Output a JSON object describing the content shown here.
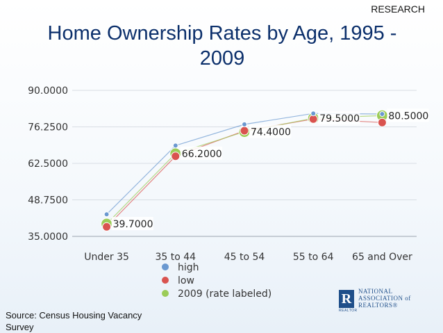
{
  "header": {
    "corner_label": "RESEARCH"
  },
  "title": "Home Ownership Rates by Age, 1995 - 2009",
  "source": "Source: Census Housing Vacancy Survey",
  "logo": {
    "letter": "R",
    "sub": "REALTOR",
    "lines": [
      "NATIONAL",
      "ASSOCIATION of",
      "REALTORS®"
    ]
  },
  "chart_data": {
    "type": "line",
    "categories": [
      "Under 35",
      "35 to 44",
      "45 to 54",
      "55 to 64",
      "65 and Over"
    ],
    "ylim": [
      35,
      90
    ],
    "yticks": [
      35,
      48.75,
      62.5,
      76.25,
      90
    ],
    "ytick_labels": [
      "35.0000",
      "48.7500",
      "62.5000",
      "76.2500",
      "90.0000"
    ],
    "series": [
      {
        "name": "high",
        "values": [
          43.3,
          69.2,
          77.2,
          81.3,
          81.1
        ],
        "color": "#6a98d0"
      },
      {
        "name": "low",
        "values": [
          38.6,
          65.2,
          74.8,
          79.2,
          77.9
        ],
        "color": "#d9534f"
      },
      {
        "name": "2009 (rate labeled)",
        "values": [
          39.7,
          66.2,
          74.4,
          79.5,
          80.5
        ],
        "color": "#9ccc58"
      }
    ],
    "data_labels": [
      "39.7000",
      "66.2000",
      "74.4000",
      "79.5000",
      "80.5000"
    ],
    "grid": true,
    "legend_position": "bottom"
  }
}
